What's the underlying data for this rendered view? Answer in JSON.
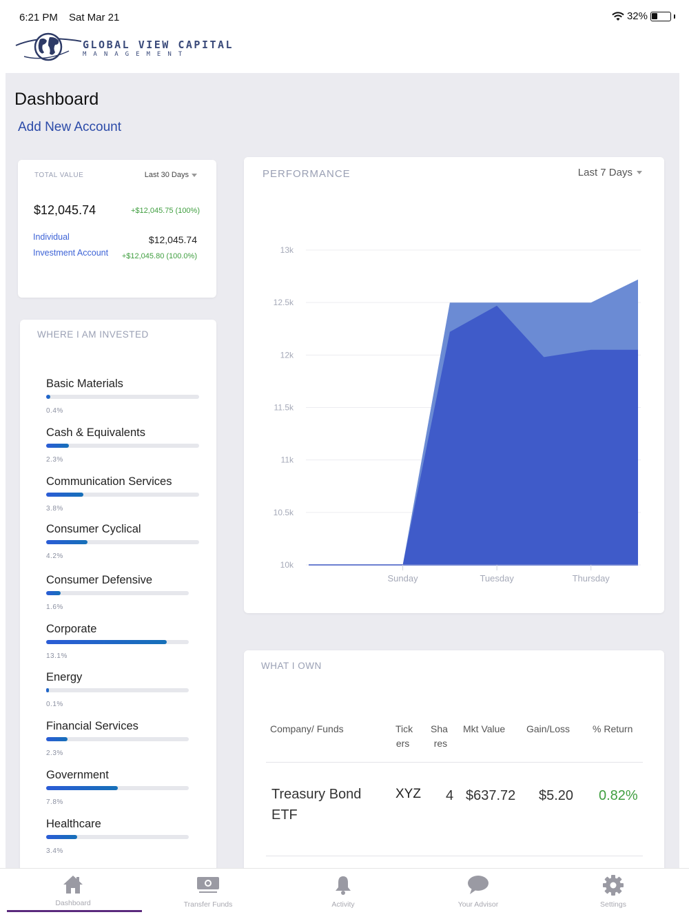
{
  "status_bar": {
    "time": "6:21 PM",
    "date": "Sat Mar 21",
    "battery": "32%",
    "battery_level": 0.32
  },
  "brand": {
    "name": "GLOBAL VIEW CAPITAL",
    "subtitle": "MANAGEMENT",
    "color": "#3a4a7a"
  },
  "page": {
    "title": "Dashboard",
    "add_account": "Add New Account"
  },
  "total_value": {
    "label": "TOTAL VALUE",
    "range": "Last 30 Days",
    "amount": "$12,045.74",
    "change": "+$12,045.75 (100%)",
    "account_name_line1": "Individual",
    "account_name_line2": "Investment Account",
    "account_value": "$12,045.74",
    "account_change": "+$12,045.80 (100.0%)"
  },
  "invested": {
    "title": "WHERE I AM INVESTED",
    "items": [
      {
        "name": "Basic Materials",
        "pct": "0.4%",
        "value": 0.4
      },
      {
        "name": "Cash & Equivalents",
        "pct": "2.3%",
        "value": 2.3
      },
      {
        "name": "Communication Services",
        "pct": "3.8%",
        "value": 3.8
      },
      {
        "name": "Consumer Cyclical",
        "pct": "4.2%",
        "value": 4.2
      },
      {
        "name": "Consumer Defensive",
        "pct": "1.6%",
        "value": 1.6
      },
      {
        "name": "Corporate",
        "pct": "13.1%",
        "value": 13.1
      },
      {
        "name": "Energy",
        "pct": "0.1%",
        "value": 0.1
      },
      {
        "name": "Financial Services",
        "pct": "2.3%",
        "value": 2.3
      },
      {
        "name": "Government",
        "pct": "7.8%",
        "value": 7.8
      },
      {
        "name": "Healthcare",
        "pct": "3.4%",
        "value": 3.4
      }
    ]
  },
  "performance": {
    "title": "PERFORMANCE",
    "range": "Last 7 Days"
  },
  "chart_data": {
    "type": "area",
    "title": "PERFORMANCE",
    "x": [
      0,
      1,
      2,
      3,
      4,
      5,
      6,
      7
    ],
    "x_tick_labels": [
      {
        "x": 2,
        "label": "Sunday"
      },
      {
        "x": 4,
        "label": "Tuesday"
      },
      {
        "x": 6,
        "label": "Thursday"
      }
    ],
    "y_ticks": [
      "10k",
      "10.5k",
      "11k",
      "11.5k",
      "12k",
      "12.5k",
      "13k"
    ],
    "y_tick_values": [
      10000,
      10500,
      11000,
      11500,
      12000,
      12500,
      13000
    ],
    "ylim": [
      10000,
      13000
    ],
    "grid": true,
    "series": [
      {
        "values": [
          10000,
          10000,
          10000,
          12500,
          12500,
          12500,
          12500,
          12720
        ],
        "color": "#6b8bd4"
      },
      {
        "values": [
          10000,
          10000,
          10000,
          12220,
          12470,
          11980,
          12050,
          12050
        ],
        "color": "#3f5bc9"
      }
    ]
  },
  "holdings": {
    "title": "WHAT I OWN",
    "columns": {
      "company": "Company/ Funds",
      "tickers_1": "Tick",
      "tickers_2": "ers",
      "shares_1": "Sha",
      "shares_2": "res",
      "mkt_value": "Mkt Value",
      "gain_loss": "Gain/Loss",
      "return": "% Return"
    },
    "rows": [
      {
        "name_line1": "Treasury Bond",
        "name_line2": "ETF",
        "ticker": "XYZ",
        "shares": "4",
        "mkt_value": "$637.72",
        "gain_loss": "$5.20",
        "return": "0.82%"
      }
    ]
  },
  "tabs": [
    {
      "label": "Dashboard",
      "icon": "home-icon",
      "active": true
    },
    {
      "label": "Transfer Funds",
      "icon": "money-icon",
      "active": false
    },
    {
      "label": "Activity",
      "icon": "bell-icon",
      "active": false
    },
    {
      "label": "Your Advisor",
      "icon": "chat-bubble-icon",
      "active": false
    },
    {
      "label": "Settings",
      "icon": "gear-icon",
      "active": false
    }
  ],
  "colors": {
    "accent_blue": "#2b4aa8",
    "link_blue": "#3d63d6",
    "positive_green": "#3f9e3f",
    "tab_active_underline": "#5a2a7d",
    "background_gray": "#ebebf0"
  }
}
